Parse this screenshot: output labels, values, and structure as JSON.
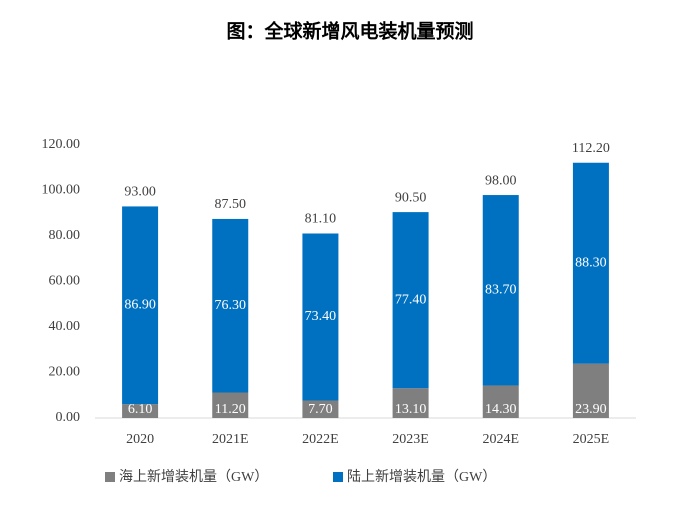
{
  "chart_data": {
    "type": "stacked_bar",
    "title": "图：全球新增风电装机量预测",
    "categories": [
      "2020",
      "2021E",
      "2022E",
      "2023E",
      "2024E",
      "2025E"
    ],
    "series": [
      {
        "name": "海上新增装机量（GW）",
        "color": "#7f7f7f",
        "values": [
          6.1,
          11.2,
          7.7,
          13.1,
          14.3,
          23.9
        ],
        "value_labels": [
          "6.10",
          "11.20",
          "7.70",
          "13.10",
          "14.30",
          "23.90"
        ]
      },
      {
        "name": "陆上新增装机量（GW）",
        "color": "#0070c0",
        "values": [
          86.9,
          76.3,
          73.4,
          77.4,
          83.7,
          88.3
        ],
        "value_labels": [
          "86.90",
          "76.30",
          "73.40",
          "77.40",
          "83.70",
          "88.30"
        ]
      }
    ],
    "totals": {
      "values": [
        93,
        87.5,
        81.1,
        90.5,
        98,
        112.2
      ],
      "value_labels": [
        "93.00",
        "87.50",
        "81.10",
        "90.50",
        "98.00",
        "112.20"
      ]
    },
    "ylim": [
      0,
      120
    ],
    "yticks": [
      {
        "value": 0,
        "label": "0.00"
      },
      {
        "value": 20,
        "label": "20.00"
      },
      {
        "value": 40,
        "label": "40.00"
      },
      {
        "value": 60,
        "label": "60.00"
      },
      {
        "value": 80,
        "label": "80.00"
      },
      {
        "value": 100,
        "label": "100.00"
      },
      {
        "value": 120,
        "label": "120.00"
      }
    ],
    "legend": "bottom"
  }
}
